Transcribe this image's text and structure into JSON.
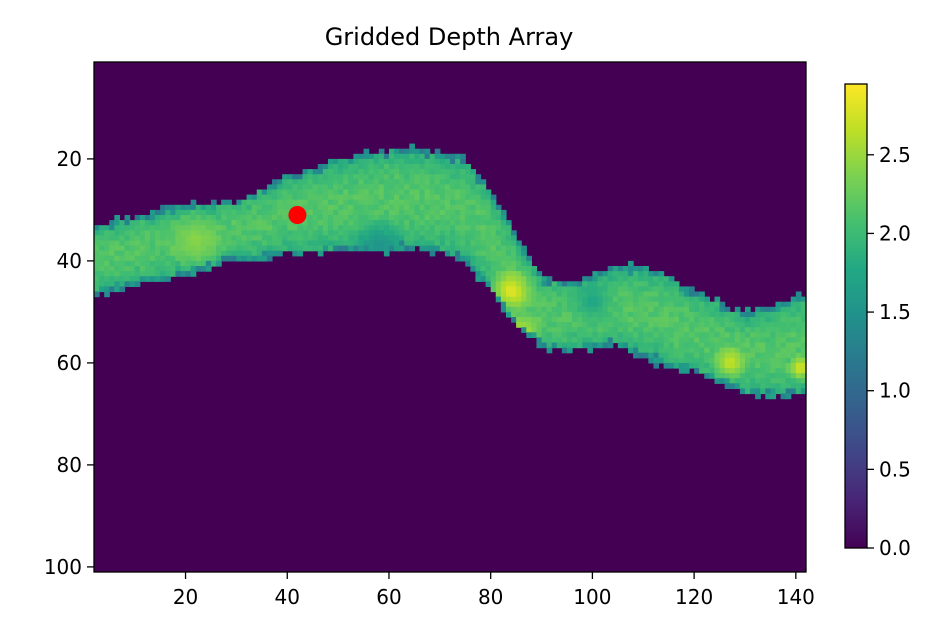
{
  "chart_data": {
    "type": "heatmap",
    "title": "Gridded Depth Array",
    "xlabel": "",
    "ylabel": "",
    "x_ticks": [
      20,
      40,
      60,
      80,
      100,
      120,
      140
    ],
    "y_ticks": [
      20,
      40,
      60,
      80,
      100
    ],
    "xlim": [
      2,
      142
    ],
    "ylim": [
      101,
      1
    ],
    "y_axis_inverted": true,
    "colormap": "viridis",
    "colorbar": {
      "range": [
        0.0,
        2.95
      ],
      "ticks": [
        "0.0",
        "0.5",
        "1.0",
        "1.5",
        "2.0",
        "2.5"
      ],
      "tick_values": [
        0.0,
        0.5,
        1.0,
        1.5,
        2.0,
        2.5
      ]
    },
    "background_value": 0.0,
    "channel": {
      "description_hint": "meandering wet band; center row and half-width vs column, typical depth ~2.0-2.3, deep zones ~2.7-2.9",
      "columns": [
        2,
        10,
        20,
        30,
        40,
        50,
        60,
        67,
        75,
        80,
        85,
        90,
        95,
        100,
        105,
        110,
        115,
        120,
        125,
        130,
        135,
        142
      ],
      "center_row": [
        40,
        38,
        36,
        34,
        31,
        29,
        28,
        28,
        30,
        36,
        44,
        50,
        51,
        50,
        49,
        50,
        52,
        54,
        56,
        58,
        58,
        56
      ],
      "half_width": [
        7,
        7,
        7,
        6,
        8,
        9,
        10,
        10,
        10,
        10,
        9,
        7,
        7,
        7,
        8,
        9,
        9,
        8,
        8,
        8,
        9,
        10
      ]
    },
    "marker": {
      "x": 42,
      "y": 31,
      "color": "#ff0000"
    }
  }
}
